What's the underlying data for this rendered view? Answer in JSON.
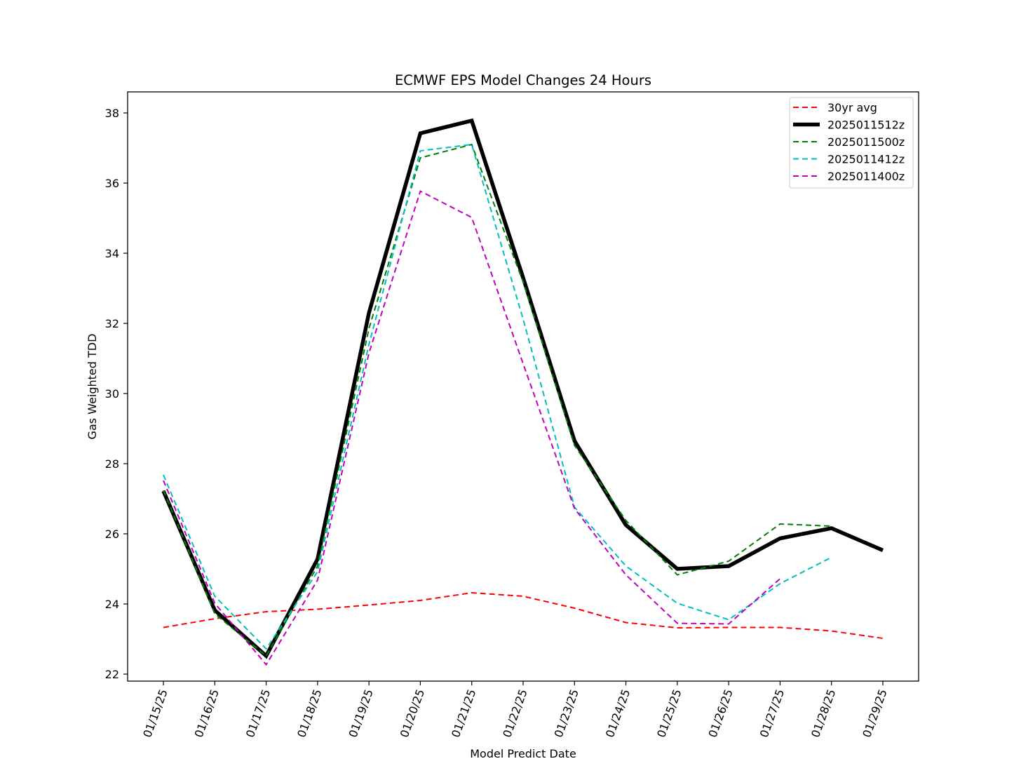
{
  "chart_data": {
    "type": "line",
    "title": "ECMWF EPS Model Changes 24 Hours",
    "xlabel": "Model Predict Date",
    "ylabel": "Gas Weighted TDD",
    "categories": [
      "01/15/25",
      "01/16/25",
      "01/17/25",
      "01/18/25",
      "01/19/25",
      "01/20/25",
      "01/21/25",
      "01/22/25",
      "01/23/25",
      "01/24/25",
      "01/25/25",
      "01/26/25",
      "01/27/25",
      "01/28/25",
      "01/29/25"
    ],
    "ylim": [
      21.8,
      38.6
    ],
    "yticks": [
      22,
      24,
      26,
      28,
      30,
      32,
      34,
      36,
      38
    ],
    "grid": false,
    "legend_position": "top-right",
    "series": [
      {
        "name": "30yr avg",
        "color": "#ff0000",
        "style": "dashed",
        "width": "thin",
        "values": [
          23.33,
          23.58,
          23.78,
          23.85,
          23.97,
          24.1,
          24.32,
          24.22,
          23.88,
          23.47,
          23.32,
          23.33,
          23.33,
          23.23,
          23.02
        ]
      },
      {
        "name": "2025011512z",
        "color": "#000000",
        "style": "solid",
        "width": "thick",
        "values": [
          27.22,
          23.82,
          22.52,
          25.28,
          32.3,
          37.42,
          37.78,
          33.3,
          28.65,
          26.25,
          25.0,
          25.08,
          25.87,
          26.16,
          25.53
        ]
      },
      {
        "name": "2025011500z",
        "color": "#008000",
        "style": "dashed",
        "width": "thin",
        "values": [
          27.24,
          23.72,
          22.52,
          25.08,
          31.85,
          36.72,
          37.1,
          33.18,
          28.52,
          26.38,
          24.83,
          25.22,
          26.28,
          26.22,
          null
        ]
      },
      {
        "name": "2025011412z",
        "color": "#00bfbf",
        "style": "dashed",
        "width": "thin",
        "values": [
          27.68,
          24.22,
          22.72,
          24.92,
          31.4,
          36.92,
          37.1,
          32.12,
          26.76,
          25.08,
          24.02,
          23.55,
          24.58,
          25.33,
          null
        ]
      },
      {
        "name": "2025011400z",
        "color": "#bf00bf",
        "style": "dashed",
        "width": "thin",
        "values": [
          27.52,
          24.02,
          22.27,
          24.68,
          31.15,
          35.77,
          35.02,
          30.85,
          26.72,
          24.83,
          23.45,
          23.43,
          24.72,
          null,
          null
        ]
      }
    ]
  }
}
